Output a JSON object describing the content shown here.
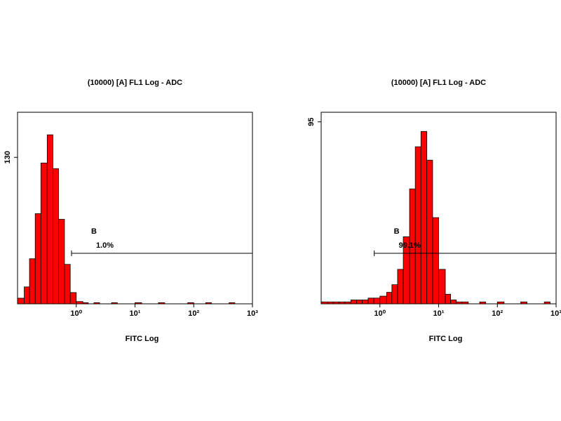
{
  "chart_data": [
    {
      "type": "histogram",
      "title": "(10000) [A] FL1 Log - ADC",
      "xlabel": "FITC Log",
      "xscale": "log",
      "xlim": [
        0.1,
        1000
      ],
      "ylim": [
        0,
        170
      ],
      "xticks": [
        {
          "value": 1,
          "label": "10⁰"
        },
        {
          "value": 10,
          "label": "10¹"
        },
        {
          "value": 100,
          "label": "10²"
        },
        {
          "value": 1000,
          "label": "10³"
        }
      ],
      "yticks": [
        130
      ],
      "color": "#ff0000",
      "edgecolor": "#000000",
      "bins": [
        0.1,
        0.13,
        0.16,
        0.2,
        0.25,
        0.32,
        0.4,
        0.5,
        0.63,
        0.79,
        1,
        1.3,
        1.6,
        2,
        2.5,
        3.2,
        4,
        5,
        6.3,
        7.9,
        10,
        13,
        16,
        20,
        25,
        32,
        40,
        50,
        63,
        79,
        100,
        130,
        160,
        200,
        250,
        320,
        400,
        500,
        630,
        790,
        1000
      ],
      "values": [
        5,
        15,
        40,
        80,
        125,
        150,
        120,
        75,
        35,
        10,
        2,
        1,
        0,
        1,
        0,
        0,
        1,
        0,
        0,
        0,
        1,
        0,
        0,
        0,
        1,
        0,
        0,
        0,
        0,
        1,
        0,
        0,
        1,
        0,
        0,
        0,
        1,
        0,
        0,
        0
      ],
      "gate": {
        "label": "B",
        "percent": "1.0%",
        "range": [
          0.83,
          1000
        ]
      }
    },
    {
      "type": "histogram",
      "title": "(10000) [A] FL1 Log - ADC",
      "xlabel": "FITC Log",
      "xscale": "log",
      "xlim": [
        0.1,
        1000
      ],
      "ylim": [
        0,
        100
      ],
      "xticks": [
        {
          "value": 1,
          "label": "10⁰"
        },
        {
          "value": 10,
          "label": "10¹"
        },
        {
          "value": 100,
          "label": "10²"
        },
        {
          "value": 1000,
          "label": "10³"
        }
      ],
      "yticks": [
        95
      ],
      "color": "#ff0000",
      "edgecolor": "#000000",
      "bins": [
        0.1,
        0.13,
        0.16,
        0.2,
        0.25,
        0.32,
        0.4,
        0.5,
        0.63,
        0.79,
        1,
        1.3,
        1.6,
        2,
        2.5,
        3.2,
        4,
        5,
        6.3,
        7.9,
        10,
        13,
        16,
        20,
        25,
        32,
        40,
        50,
        63,
        79,
        100,
        130,
        160,
        200,
        250,
        320,
        400,
        500,
        630,
        790,
        1000
      ],
      "values": [
        1,
        1,
        1,
        1,
        1,
        2,
        2,
        2,
        3,
        3,
        4,
        6,
        10,
        18,
        35,
        60,
        82,
        90,
        75,
        45,
        18,
        5,
        2,
        1,
        1,
        0,
        0,
        1,
        0,
        0,
        1,
        0,
        0,
        0,
        1,
        0,
        0,
        0,
        1,
        0
      ],
      "gate": {
        "label": "B",
        "percent": "99.1%",
        "range": [
          0.8,
          1000
        ]
      }
    }
  ]
}
